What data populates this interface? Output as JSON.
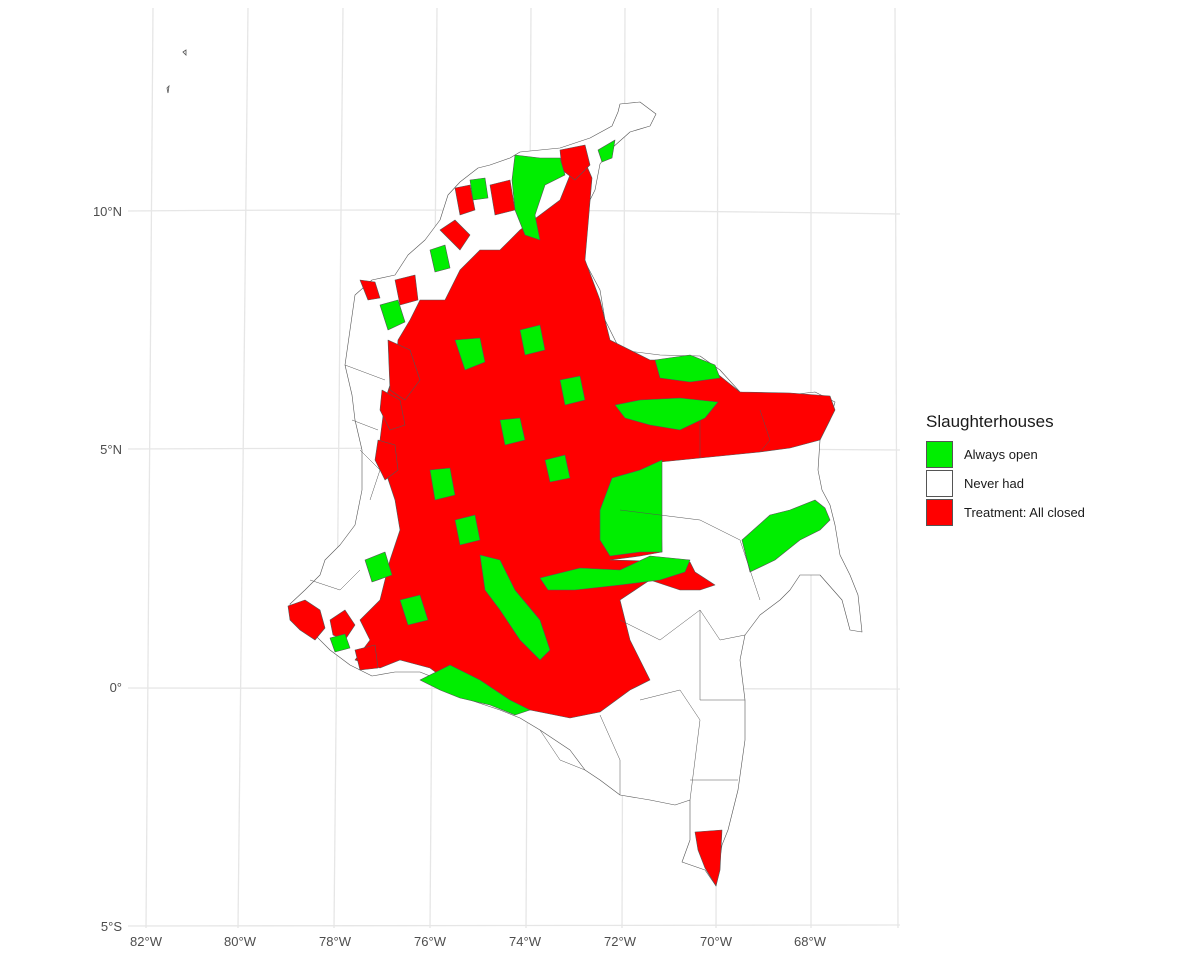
{
  "map": {
    "lat_labels": [
      "10°N",
      "5°N",
      "0°",
      "5°S"
    ],
    "lon_labels": [
      "82°W",
      "80°W",
      "78°W",
      "76°W",
      "74°W",
      "72°W",
      "70°W",
      "68°W"
    ]
  },
  "legend": {
    "title": "Slaughterhouses",
    "items": [
      {
        "label": "Always open",
        "color": "#00ee00"
      },
      {
        "label": "Never had",
        "color": "#ffffff"
      },
      {
        "label": "Treatment: All closed",
        "color": "#ff0000"
      }
    ]
  },
  "colors": {
    "open": "#00ee00",
    "never": "#ffffff",
    "closed": "#ff0000",
    "border": "#555555",
    "grid": "#e6e6e6"
  }
}
